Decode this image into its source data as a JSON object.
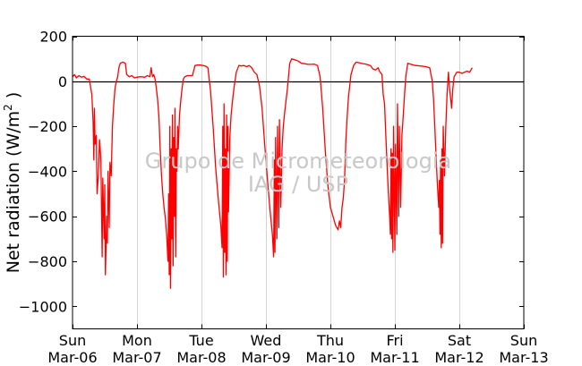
{
  "chart_data": {
    "type": "line",
    "ylabel_main": "Net radiation (W/m",
    "ylabel_sup": "2",
    "ylabel_close": " )",
    "watermark_line1": "Grupo de Micrometeorologia",
    "watermark_line2": "IAG / USP",
    "ylim": [
      -1100,
      200
    ],
    "xlim": [
      0,
      7
    ],
    "yticks": [
      200,
      0,
      -200,
      -400,
      -600,
      -800,
      -1000
    ],
    "ytick_labels": [
      "200",
      "0",
      "−200",
      "−400",
      "−600",
      "−800",
      "−1000"
    ],
    "xticks": [
      {
        "day": "Sun",
        "date": "Mar-06"
      },
      {
        "day": "Mon",
        "date": "Mar-07"
      },
      {
        "day": "Tue",
        "date": "Mar-08"
      },
      {
        "day": "Wed",
        "date": "Mar-09"
      },
      {
        "day": "Thu",
        "date": "Mar-10"
      },
      {
        "day": "Fri",
        "date": "Mar-11"
      },
      {
        "day": "Sat",
        "date": "Mar-12"
      },
      {
        "day": "Sun",
        "date": "Mar-13"
      }
    ],
    "grid": "vertical",
    "zero_line": true,
    "series": [
      {
        "color": "#ff0000",
        "x_unit": "days since Mar-06 00:00",
        "points": [
          [
            0.0,
            20
          ],
          [
            0.03,
            30
          ],
          [
            0.06,
            15
          ],
          [
            0.1,
            25
          ],
          [
            0.14,
            18
          ],
          [
            0.18,
            22
          ],
          [
            0.22,
            10
          ],
          [
            0.26,
            10
          ],
          [
            0.3,
            -60
          ],
          [
            0.32,
            -180
          ],
          [
            0.33,
            -350
          ],
          [
            0.34,
            -120
          ],
          [
            0.35,
            -280
          ],
          [
            0.37,
            -240
          ],
          [
            0.38,
            -500
          ],
          [
            0.4,
            -420
          ],
          [
            0.42,
            -260
          ],
          [
            0.44,
            -350
          ],
          [
            0.46,
            -780
          ],
          [
            0.47,
            -430
          ],
          [
            0.49,
            -700
          ],
          [
            0.5,
            -460
          ],
          [
            0.51,
            -860
          ],
          [
            0.53,
            -600
          ],
          [
            0.54,
            -720
          ],
          [
            0.55,
            -400
          ],
          [
            0.57,
            -650
          ],
          [
            0.58,
            -360
          ],
          [
            0.6,
            -420
          ],
          [
            0.62,
            -200
          ],
          [
            0.64,
            -100
          ],
          [
            0.66,
            -30
          ],
          [
            0.68,
            0
          ],
          [
            0.7,
            20
          ],
          [
            0.72,
            60
          ],
          [
            0.74,
            80
          ],
          [
            0.78,
            85
          ],
          [
            0.82,
            80
          ],
          [
            0.84,
            30
          ],
          [
            0.88,
            20
          ],
          [
            0.92,
            25
          ],
          [
            0.96,
            15
          ],
          [
            1.0,
            18
          ],
          [
            1.04,
            20
          ],
          [
            1.08,
            20
          ],
          [
            1.12,
            18
          ],
          [
            1.16,
            25
          ],
          [
            1.2,
            20
          ],
          [
            1.22,
            60
          ],
          [
            1.24,
            20
          ],
          [
            1.26,
            30
          ],
          [
            1.28,
            10
          ],
          [
            1.3,
            -30
          ],
          [
            1.32,
            -80
          ],
          [
            1.34,
            -160
          ],
          [
            1.36,
            -300
          ],
          [
            1.38,
            -420
          ],
          [
            1.4,
            -500
          ],
          [
            1.42,
            -560
          ],
          [
            1.44,
            -610
          ],
          [
            1.46,
            -680
          ],
          [
            1.48,
            -800
          ],
          [
            1.49,
            -500
          ],
          [
            1.5,
            -860
          ],
          [
            1.51,
            -200
          ],
          [
            1.52,
            -920
          ],
          [
            1.53,
            -300
          ],
          [
            1.54,
            -700
          ],
          [
            1.55,
            -150
          ],
          [
            1.56,
            -820
          ],
          [
            1.57,
            -250
          ],
          [
            1.58,
            -600
          ],
          [
            1.59,
            -120
          ],
          [
            1.6,
            -780
          ],
          [
            1.61,
            -300
          ],
          [
            1.62,
            -400
          ],
          [
            1.63,
            -200
          ],
          [
            1.64,
            -300
          ],
          [
            1.66,
            -150
          ],
          [
            1.68,
            -80
          ],
          [
            1.7,
            -30
          ],
          [
            1.72,
            10
          ],
          [
            1.74,
            20
          ],
          [
            1.78,
            25
          ],
          [
            1.82,
            25
          ],
          [
            1.86,
            25
          ],
          [
            1.9,
            70
          ],
          [
            1.94,
            72
          ],
          [
            1.98,
            72
          ],
          [
            2.02,
            70
          ],
          [
            2.06,
            68
          ],
          [
            2.1,
            60
          ],
          [
            2.14,
            -40
          ],
          [
            2.18,
            -200
          ],
          [
            2.22,
            -380
          ],
          [
            2.26,
            -520
          ],
          [
            2.3,
            -640
          ],
          [
            2.32,
            -740
          ],
          [
            2.33,
            -200
          ],
          [
            2.34,
            -870
          ],
          [
            2.35,
            -100
          ],
          [
            2.36,
            -760
          ],
          [
            2.37,
            -300
          ],
          [
            2.38,
            -860
          ],
          [
            2.39,
            -150
          ],
          [
            2.4,
            -800
          ],
          [
            2.41,
            -200
          ],
          [
            2.42,
            -580
          ],
          [
            2.44,
            -250
          ],
          [
            2.46,
            -150
          ],
          [
            2.48,
            -90
          ],
          [
            2.5,
            -40
          ],
          [
            2.52,
            0
          ],
          [
            2.54,
            40
          ],
          [
            2.58,
            70
          ],
          [
            2.62,
            68
          ],
          [
            2.66,
            70
          ],
          [
            2.7,
            65
          ],
          [
            2.74,
            70
          ],
          [
            2.78,
            60
          ],
          [
            2.82,
            40
          ],
          [
            2.86,
            30
          ],
          [
            2.9,
            -20
          ],
          [
            2.94,
            -120
          ],
          [
            2.98,
            -280
          ],
          [
            3.02,
            -420
          ],
          [
            3.06,
            -560
          ],
          [
            3.1,
            -680
          ],
          [
            3.12,
            -780
          ],
          [
            3.13,
            -350
          ],
          [
            3.14,
            -760
          ],
          [
            3.15,
            -250
          ],
          [
            3.17,
            -700
          ],
          [
            3.18,
            -200
          ],
          [
            3.2,
            -650
          ],
          [
            3.21,
            -170
          ],
          [
            3.23,
            -560
          ],
          [
            3.25,
            -300
          ],
          [
            3.27,
            -200
          ],
          [
            3.29,
            -140
          ],
          [
            3.31,
            -90
          ],
          [
            3.33,
            -40
          ],
          [
            3.35,
            20
          ],
          [
            3.37,
            80
          ],
          [
            3.4,
            100
          ],
          [
            3.45,
            95
          ],
          [
            3.5,
            90
          ],
          [
            3.55,
            80
          ],
          [
            3.6,
            78
          ],
          [
            3.65,
            75
          ],
          [
            3.7,
            75
          ],
          [
            3.75,
            76
          ],
          [
            3.8,
            70
          ],
          [
            3.84,
            20
          ],
          [
            3.88,
            -120
          ],
          [
            3.92,
            -300
          ],
          [
            3.96,
            -460
          ],
          [
            4.0,
            -560
          ],
          [
            4.04,
            -600
          ],
          [
            4.08,
            -640
          ],
          [
            4.12,
            -660
          ],
          [
            4.14,
            -620
          ],
          [
            4.16,
            -650
          ],
          [
            4.18,
            -560
          ],
          [
            4.2,
            -520
          ],
          [
            4.22,
            -440
          ],
          [
            4.24,
            -260
          ],
          [
            4.26,
            -160
          ],
          [
            4.28,
            -70
          ],
          [
            4.3,
            -20
          ],
          [
            4.32,
            30
          ],
          [
            4.36,
            70
          ],
          [
            4.4,
            85
          ],
          [
            4.48,
            80
          ],
          [
            4.56,
            75
          ],
          [
            4.62,
            70
          ],
          [
            4.66,
            55
          ],
          [
            4.7,
            50
          ],
          [
            4.74,
            60
          ],
          [
            4.76,
            45
          ],
          [
            4.8,
            30
          ],
          [
            4.82,
            -60
          ],
          [
            4.84,
            -100
          ],
          [
            4.86,
            -240
          ],
          [
            4.88,
            -380
          ],
          [
            4.9,
            -500
          ],
          [
            4.92,
            -600
          ],
          [
            4.93,
            -680
          ],
          [
            4.94,
            -300
          ],
          [
            4.95,
            -700
          ],
          [
            4.96,
            -320
          ],
          [
            4.97,
            -760
          ],
          [
            4.98,
            -200
          ],
          [
            5.0,
            -750
          ],
          [
            5.01,
            -280
          ],
          [
            5.03,
            -680
          ],
          [
            5.04,
            -100
          ],
          [
            5.06,
            -600
          ],
          [
            5.07,
            -200
          ],
          [
            5.09,
            -560
          ],
          [
            5.11,
            -240
          ],
          [
            5.13,
            -150
          ],
          [
            5.15,
            -60
          ],
          [
            5.17,
            20
          ],
          [
            5.2,
            80
          ],
          [
            5.25,
            75
          ],
          [
            5.32,
            70
          ],
          [
            5.4,
            68
          ],
          [
            5.48,
            65
          ],
          [
            5.54,
            60
          ],
          [
            5.58,
            0
          ],
          [
            5.6,
            -80
          ],
          [
            5.62,
            -200
          ],
          [
            5.64,
            -340
          ],
          [
            5.66,
            -460
          ],
          [
            5.68,
            -560
          ],
          [
            5.69,
            -440
          ],
          [
            5.7,
            -680
          ],
          [
            5.71,
            -350
          ],
          [
            5.72,
            -740
          ],
          [
            5.73,
            -300
          ],
          [
            5.74,
            -720
          ],
          [
            5.75,
            -200
          ],
          [
            5.77,
            -420
          ],
          [
            5.79,
            -200
          ],
          [
            5.81,
            -60
          ],
          [
            5.83,
            40
          ],
          [
            5.85,
            -40
          ],
          [
            5.86,
            -60
          ],
          [
            5.88,
            -120
          ],
          [
            5.9,
            -30
          ],
          [
            5.92,
            20
          ],
          [
            5.96,
            40
          ],
          [
            6.0,
            40
          ],
          [
            6.04,
            35
          ],
          [
            6.08,
            40
          ],
          [
            6.12,
            45
          ],
          [
            6.16,
            40
          ],
          [
            6.2,
            60
          ]
        ]
      }
    ]
  }
}
